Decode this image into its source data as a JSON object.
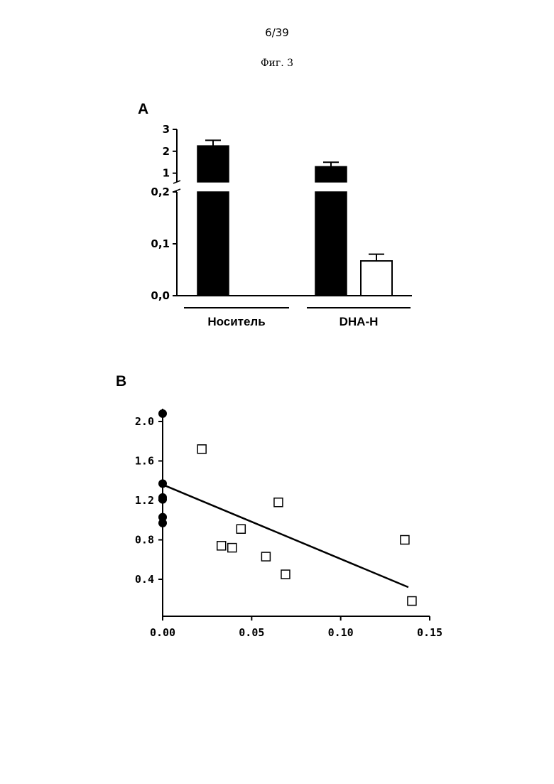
{
  "page": {
    "number": "6/39",
    "figure_title": "Фиг. 3"
  },
  "chart_data": [
    {
      "panel": "A",
      "type": "bar",
      "title": "",
      "xlabel": "",
      "ylabel": "",
      "broken_y_axis": true,
      "ylim_lower": [
        0.0,
        0.2
      ],
      "ylim_upper": [
        0.6,
        3.0
      ],
      "yticks_lower": [
        "0,0",
        "0,1",
        "0,2"
      ],
      "yticks_upper": [
        "1",
        "2",
        "3"
      ],
      "groups": [
        "Носитель",
        "DHA-H"
      ],
      "series": [
        {
          "fill": "#000000",
          "values": [
            2.25,
            1.3
          ],
          "errors": [
            0.25,
            0.2
          ]
        },
        {
          "fill": "#ffffff",
          "values": [
            0.0,
            0.067
          ],
          "errors": [
            0.0,
            0.013
          ]
        }
      ]
    },
    {
      "panel": "B",
      "type": "scatter",
      "title": "",
      "xlabel": "",
      "ylabel": "",
      "xlim": [
        0,
        0.15
      ],
      "ylim": [
        0.0,
        2.1
      ],
      "xticks": [
        "0.00",
        "0.05",
        "0.10",
        "0.15"
      ],
      "yticks": [
        "0.4",
        "0.8",
        "1.2",
        "1.6",
        "2.0"
      ],
      "series": [
        {
          "marker": "filled-circle",
          "color": "#000000",
          "points": [
            [
              0.0,
              2.08
            ],
            [
              0.0,
              1.37
            ],
            [
              0.0,
              1.23
            ],
            [
              0.0,
              1.21
            ],
            [
              0.0,
              1.03
            ],
            [
              0.0,
              0.97
            ]
          ]
        },
        {
          "marker": "open-square",
          "color": "#000000",
          "points": [
            [
              0.022,
              1.72
            ],
            [
              0.033,
              0.74
            ],
            [
              0.039,
              0.72
            ],
            [
              0.044,
              0.91
            ],
            [
              0.058,
              0.63
            ],
            [
              0.065,
              1.18
            ],
            [
              0.069,
              0.45
            ],
            [
              0.136,
              0.8
            ],
            [
              0.14,
              0.18
            ]
          ]
        }
      ],
      "regression_line": {
        "x": [
          0.0,
          0.138
        ],
        "y": [
          1.36,
          0.32
        ]
      }
    }
  ]
}
